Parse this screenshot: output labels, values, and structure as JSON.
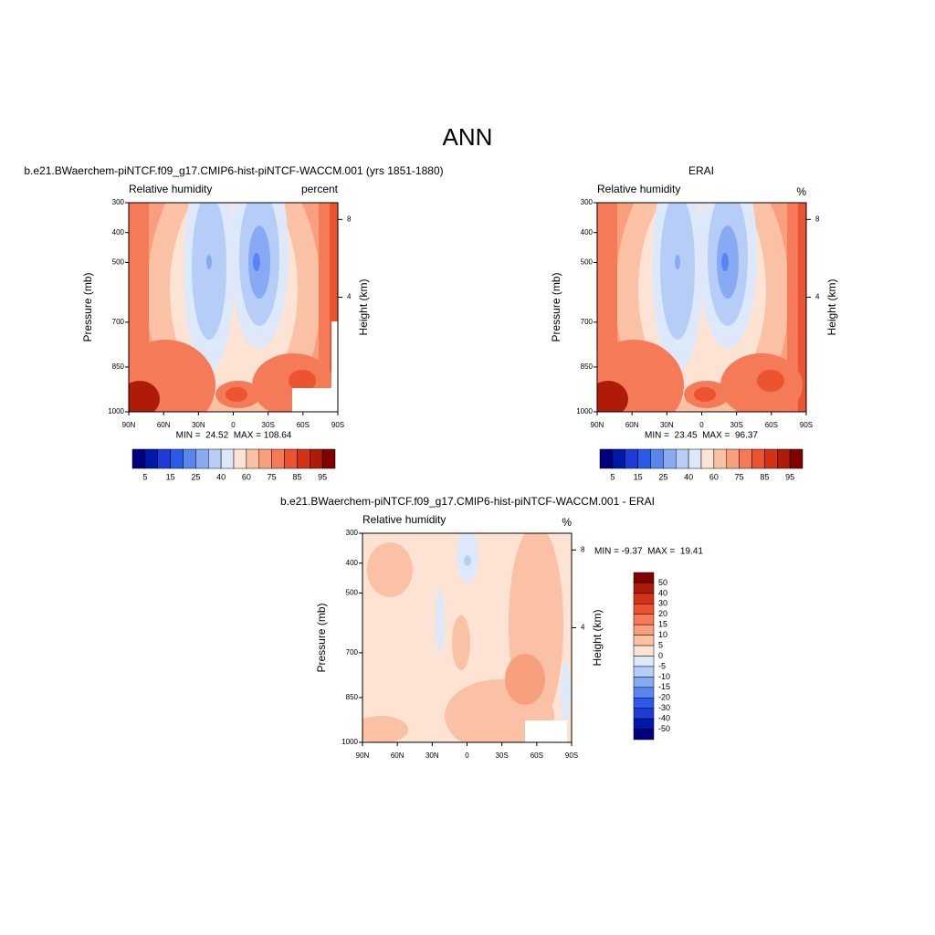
{
  "title": "ANN",
  "chart_data": [
    {
      "type": "contour",
      "title": "b.e21.BWaerchem-piNTCF.f09_g17.CMIP6-hist-piNTCF-WACCM.001 (yrs 1851-1880)",
      "left_string": "Relative humidity",
      "right_string": "percent",
      "y_label": "Pressure (mb)",
      "y2_label": "Height (km)",
      "xlim": [
        90,
        -90
      ],
      "xticks": [
        {
          "value": 90,
          "label": "90N"
        },
        {
          "value": 60,
          "label": "60N"
        },
        {
          "value": 30,
          "label": "30N"
        },
        0,
        {
          "value": -30,
          "label": "30S"
        },
        {
          "value": -60,
          "label": "60S"
        },
        {
          "value": -90,
          "label": "90S"
        }
      ],
      "ylim": [
        1000,
        300
      ],
      "yticks": [
        300,
        400,
        500,
        700,
        850,
        1000
      ],
      "y2ticks": [
        4,
        8
      ],
      "stats": "MIN =  24.52  MAX = 108.64",
      "colorbar": {
        "orientation": "horizontal",
        "labels": [
          5,
          15,
          25,
          40,
          60,
          75,
          85,
          95
        ],
        "colors": [
          "#00007f",
          "#0018a8",
          "#1d3bd6",
          "#2b5ae8",
          "#5a85f0",
          "#88aaf5",
          "#b6cdf8",
          "#dde9fb",
          "#fde3d3",
          "#fbc1a5",
          "#f89f7e",
          "#f57a57",
          "#ec5330",
          "#d23216",
          "#b01a08",
          "#7f0000"
        ]
      }
    },
    {
      "type": "contour",
      "title": "ERAI",
      "left_string": "Relative humidity",
      "right_string": "%",
      "y_label": "Pressure (mb)",
      "y2_label": "Height (km)",
      "xlim": [
        90,
        -90
      ],
      "xticks": [
        {
          "value": 90,
          "label": "90N"
        },
        {
          "value": 60,
          "label": "60N"
        },
        {
          "value": 30,
          "label": "30N"
        },
        0,
        {
          "value": -30,
          "label": "30S"
        },
        {
          "value": -60,
          "label": "60S"
        },
        {
          "value": -90,
          "label": "90S"
        }
      ],
      "ylim": [
        1000,
        300
      ],
      "yticks": [
        300,
        400,
        500,
        700,
        850,
        1000
      ],
      "y2ticks": [
        4,
        8
      ],
      "stats": "MIN =  23.45  MAX =  96.37",
      "colorbar": {
        "orientation": "horizontal",
        "labels": [
          5,
          15,
          25,
          40,
          60,
          75,
          85,
          95
        ],
        "colors": [
          "#00007f",
          "#0018a8",
          "#1d3bd6",
          "#2b5ae8",
          "#5a85f0",
          "#88aaf5",
          "#b6cdf8",
          "#dde9fb",
          "#fde3d3",
          "#fbc1a5",
          "#f89f7e",
          "#f57a57",
          "#ec5330",
          "#d23216",
          "#b01a08",
          "#7f0000"
        ]
      }
    },
    {
      "type": "contour",
      "title": "b.e21.BWaerchem-piNTCF.f09_g17.CMIP6-hist-piNTCF-WACCM.001 - ERAI",
      "left_string": "Relative humidity",
      "right_string": "%",
      "y_label": "Pressure (mb)",
      "y2_label": "Height (km)",
      "xlim": [
        90,
        -90
      ],
      "xticks": [
        {
          "value": 90,
          "label": "90N"
        },
        {
          "value": 60,
          "label": "60N"
        },
        {
          "value": 30,
          "label": "30N"
        },
        0,
        {
          "value": -30,
          "label": "30S"
        },
        {
          "value": -60,
          "label": "60S"
        },
        {
          "value": -90,
          "label": "90S"
        }
      ],
      "ylim": [
        1000,
        300
      ],
      "yticks": [
        300,
        400,
        500,
        700,
        850,
        1000
      ],
      "y2ticks": [
        4,
        8
      ],
      "stats": "MIN = -9.37  MAX =  19.41",
      "colorbar": {
        "orientation": "vertical",
        "labels": [
          50,
          40,
          30,
          20,
          15,
          10,
          5,
          0,
          -5,
          -10,
          -15,
          -20,
          -30,
          -40,
          -50
        ],
        "colors": [
          "#7f0000",
          "#b01a08",
          "#d23216",
          "#ec5330",
          "#f57a57",
          "#f89f7e",
          "#fbc1a5",
          "#fde3d3",
          "#dde9fb",
          "#b6cdf8",
          "#88aaf5",
          "#5a85f0",
          "#2b5ae8",
          "#1d3bd6",
          "#0018a8",
          "#00007f"
        ]
      }
    }
  ]
}
